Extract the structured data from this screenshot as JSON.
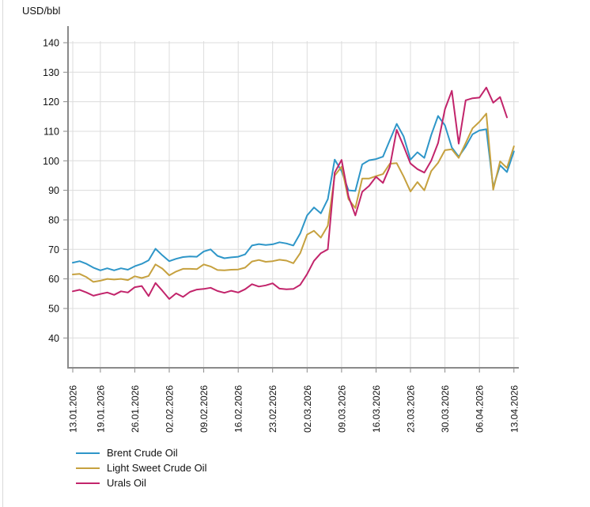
{
  "chart_data": {
    "type": "line",
    "title": "USD/bbl",
    "xlabel": "",
    "ylabel": "USD/bbl",
    "grid": true,
    "legend_position": "bottom-left",
    "ylim": [
      33,
      145
    ],
    "y_ticks": [
      40,
      50,
      60,
      70,
      80,
      90,
      100,
      110,
      120,
      130,
      140
    ],
    "n_points": 65,
    "x_tick_indices": [
      0,
      4,
      9,
      14,
      19,
      24,
      29,
      34,
      39,
      44,
      49,
      54,
      59,
      64
    ],
    "x_tick_labels": [
      "13.01.2026",
      "19.01.2026",
      "26.01.2026",
      "02.02.2026",
      "09.02.2026",
      "16.02.2026",
      "23.02.2026",
      "02.03.2026",
      "09.03.2026",
      "16.03.2026",
      "23.03.2026",
      "30.03.2026",
      "06.04.2026",
      "13.04.2026"
    ],
    "series": [
      {
        "name": "Brent Crude Oil",
        "color": "#2E96C8",
        "values": [
          65.5,
          66.0,
          65.1,
          63.8,
          62.9,
          63.6,
          62.9,
          63.6,
          63.1,
          64.3,
          65.1,
          66.3,
          70.2,
          68.0,
          66.0,
          66.8,
          67.4,
          67.6,
          67.5,
          69.3,
          70.0,
          67.8,
          67.0,
          67.3,
          67.5,
          68.3,
          71.3,
          71.8,
          71.5,
          71.7,
          72.4,
          72.0,
          71.3,
          75.4,
          81.5,
          84.2,
          82.2,
          87.0,
          100.4,
          96.5,
          90.0,
          89.8,
          98.8,
          100.2,
          100.6,
          101.4,
          107.0,
          112.5,
          108.3,
          100.4,
          102.9,
          101.0,
          108.7,
          115.2,
          112.0,
          104.5,
          101.4,
          104.8,
          109.0,
          110.3,
          110.7,
          91.0,
          98.5,
          96.2,
          103.2
        ]
      },
      {
        "name": "Light Sweet Crude Oil",
        "color": "#C6A13F",
        "values": [
          61.5,
          61.7,
          60.6,
          59.0,
          59.4,
          60.0,
          59.8,
          60.0,
          59.6,
          60.9,
          60.3,
          61.0,
          64.9,
          63.5,
          61.2,
          62.5,
          63.4,
          63.4,
          63.3,
          64.9,
          64.2,
          63.0,
          62.9,
          63.1,
          63.2,
          63.8,
          65.9,
          66.4,
          65.8,
          66.0,
          66.5,
          66.2,
          65.3,
          68.7,
          75.0,
          76.3,
          74.0,
          78.0,
          95.0,
          98.0,
          87.0,
          84.0,
          94.0,
          94.0,
          94.8,
          95.5,
          99.0,
          99.2,
          94.7,
          89.6,
          92.8,
          90.0,
          96.5,
          99.3,
          103.6,
          103.9,
          101.0,
          106.0,
          111.0,
          113.2,
          116.0,
          90.2,
          99.8,
          97.6,
          104.9
        ]
      },
      {
        "name": "Urals Oil",
        "color": "#C2246B",
        "values": [
          55.8,
          56.3,
          55.4,
          54.3,
          54.9,
          55.4,
          54.6,
          55.8,
          55.4,
          57.2,
          57.6,
          54.2,
          58.6,
          56.0,
          53.2,
          55.1,
          53.9,
          55.6,
          56.4,
          56.6,
          57.0,
          55.9,
          55.3,
          56.0,
          55.4,
          56.5,
          58.2,
          57.4,
          57.8,
          58.5,
          56.7,
          56.5,
          56.6,
          58.0,
          61.6,
          66.1,
          68.7,
          70.0,
          96.0,
          100.3,
          88.0,
          81.5,
          89.5,
          91.5,
          94.6,
          92.5,
          98.0,
          110.5,
          105.0,
          99.1,
          97.2,
          96.0,
          100.0,
          106.0,
          117.5,
          123.7,
          105.8,
          120.5,
          121.2,
          121.4,
          124.8,
          119.7,
          121.6,
          114.7,
          null
        ]
      }
    ]
  }
}
